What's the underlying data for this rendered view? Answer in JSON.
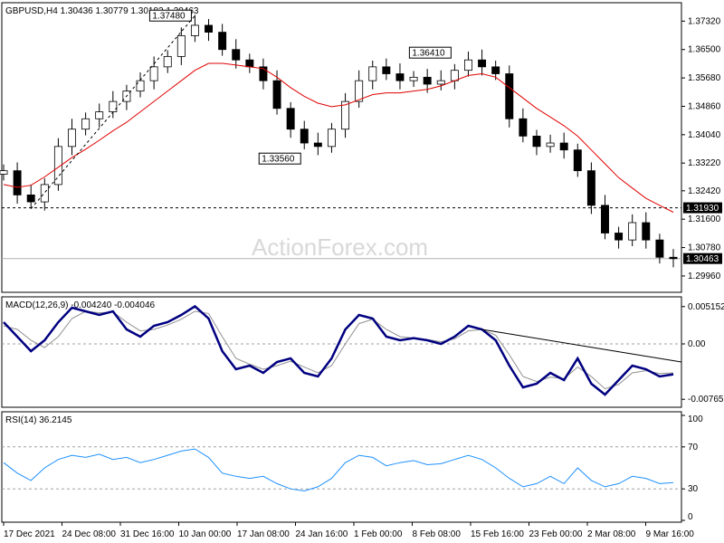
{
  "chart_data": [
    {
      "type": "candlestick",
      "title": "GBPUSD,H4  1.30436 1.30779 1.30182 1.30463",
      "ylim": [
        1.2954,
        1.378
      ],
      "y_ticks": [
        "1.37320",
        "1.36500",
        "1.35680",
        "1.34860",
        "1.34040",
        "1.33220",
        "1.32420",
        "1.31600",
        "1.30780",
        "1.29960"
      ],
      "x_ticks": [
        "17 Dec 2021",
        "24 Dec 08:00",
        "31 Dec 16:00",
        "10 Jan 00:00",
        "17 Jan 08:00",
        "24 Jan 16:00",
        "1 Feb 00:00",
        "8 Feb 08:00",
        "15 Feb 16:00",
        "23 Feb 00:00",
        "2 Mar 08:00",
        "9 Mar 16:00"
      ],
      "close_series": [
        1.33,
        1.323,
        1.321,
        1.326,
        1.337,
        1.342,
        1.345,
        1.347,
        1.35,
        1.353,
        1.356,
        1.36,
        1.363,
        1.369,
        1.372,
        1.37,
        1.365,
        1.362,
        1.36,
        1.356,
        1.348,
        1.342,
        1.338,
        1.337,
        1.342,
        1.35,
        1.356,
        1.36,
        1.358,
        1.356,
        1.357,
        1.355,
        1.356,
        1.359,
        1.362,
        1.36,
        1.358,
        1.345,
        1.34,
        1.337,
        1.338,
        1.336,
        1.33,
        1.32,
        1.312,
        1.31,
        1.315,
        1.31,
        1.305,
        1.3046
      ],
      "moving_average": [
        1.326,
        1.3252,
        1.3258,
        1.3282,
        1.331,
        1.3338,
        1.3362,
        1.3388,
        1.3415,
        1.344,
        1.347,
        1.35,
        1.353,
        1.356,
        1.359,
        1.361,
        1.361,
        1.3605,
        1.36,
        1.3595,
        1.357,
        1.354,
        1.3515,
        1.3495,
        1.3485,
        1.349,
        1.3505,
        1.352,
        1.3525,
        1.3525,
        1.353,
        1.3535,
        1.3545,
        1.356,
        1.3575,
        1.358,
        1.357,
        1.354,
        1.351,
        1.348,
        1.3455,
        1.343,
        1.34,
        1.336,
        1.332,
        1.328,
        1.325,
        1.322,
        1.32,
        1.318
      ],
      "horizontal_levels": [
        {
          "value": 1.3193,
          "label": "1.31930",
          "style": "dashed",
          "color": "#000000"
        },
        {
          "value": 1.30463,
          "label": "1.30463",
          "style": "solid",
          "color": "#b0b0b0"
        }
      ],
      "annotations": [
        {
          "text": "1.37480",
          "x_index": 14,
          "value": 1.3748
        },
        {
          "text": "1.33560",
          "x_index": 22,
          "value": 1.3356
        },
        {
          "text": "1.36410",
          "x_index": 33,
          "value": 1.3641
        }
      ],
      "trendline_from_low": true,
      "watermark": "ActionForex.com",
      "colors": {
        "candles": "#000000",
        "moving_average": "#e00000",
        "background": "#ffffff"
      }
    },
    {
      "type": "line",
      "title": "MACD(12,26,9) -0.004240 -0.004046",
      "ylim": [
        -0.0085,
        0.006
      ],
      "y_ticks": [
        "0.005152",
        "0.00",
        "-0.00765"
      ],
      "series": [
        {
          "color": "#000080",
          "values": [
            0.003,
            0.001,
            -0.001,
            0.0005,
            0.003,
            0.005,
            0.0045,
            0.004,
            0.0045,
            0.002,
            0.001,
            0.0025,
            0.003,
            0.004,
            0.0052,
            0.0035,
            -0.001,
            -0.0035,
            -0.003,
            -0.004,
            -0.0025,
            -0.002,
            -0.004,
            -0.0045,
            -0.002,
            0.002,
            0.004,
            0.0035,
            0.001,
            0.0005,
            0.0008,
            0.0005,
            0.0,
            0.001,
            0.0025,
            0.002,
            0.0005,
            -0.003,
            -0.006,
            -0.0055,
            -0.004,
            -0.005,
            -0.002,
            -0.0055,
            -0.007,
            -0.005,
            -0.003,
            -0.0035,
            -0.0045,
            -0.0042
          ]
        },
        {
          "color": "#909090",
          "values": [
            0.0025,
            0.002,
            0.0005,
            -0.0005,
            0.001,
            0.0035,
            0.0045,
            0.0043,
            0.0044,
            0.003,
            0.0018,
            0.002,
            0.0026,
            0.0034,
            0.0045,
            0.0042,
            0.001,
            -0.002,
            -0.0028,
            -0.0035,
            -0.003,
            -0.0024,
            -0.0032,
            -0.004,
            -0.003,
            0.0,
            0.0028,
            0.0034,
            0.002,
            0.001,
            0.0008,
            0.0006,
            0.0003,
            0.0007,
            0.0018,
            0.002,
            0.0012,
            -0.0015,
            -0.0045,
            -0.0052,
            -0.0046,
            -0.0048,
            -0.0032,
            -0.0045,
            -0.0062,
            -0.0056,
            -0.004,
            -0.0037,
            -0.0041,
            -0.004
          ]
        }
      ]
    },
    {
      "type": "line",
      "title": "RSI(14) 36.2145",
      "ylim": [
        0,
        100
      ],
      "y_ticks": [
        "100",
        "70",
        "30",
        "0"
      ],
      "series": [
        {
          "color": "#1e90ff",
          "values": [
            55,
            45,
            38,
            50,
            58,
            62,
            60,
            63,
            58,
            60,
            55,
            58,
            62,
            66,
            68,
            60,
            45,
            42,
            40,
            42,
            35,
            30,
            28,
            32,
            40,
            55,
            62,
            60,
            52,
            55,
            57,
            53,
            54,
            58,
            62,
            58,
            50,
            40,
            32,
            35,
            42,
            35,
            50,
            38,
            32,
            35,
            42,
            40,
            35,
            36
          ]
        }
      ]
    }
  ]
}
